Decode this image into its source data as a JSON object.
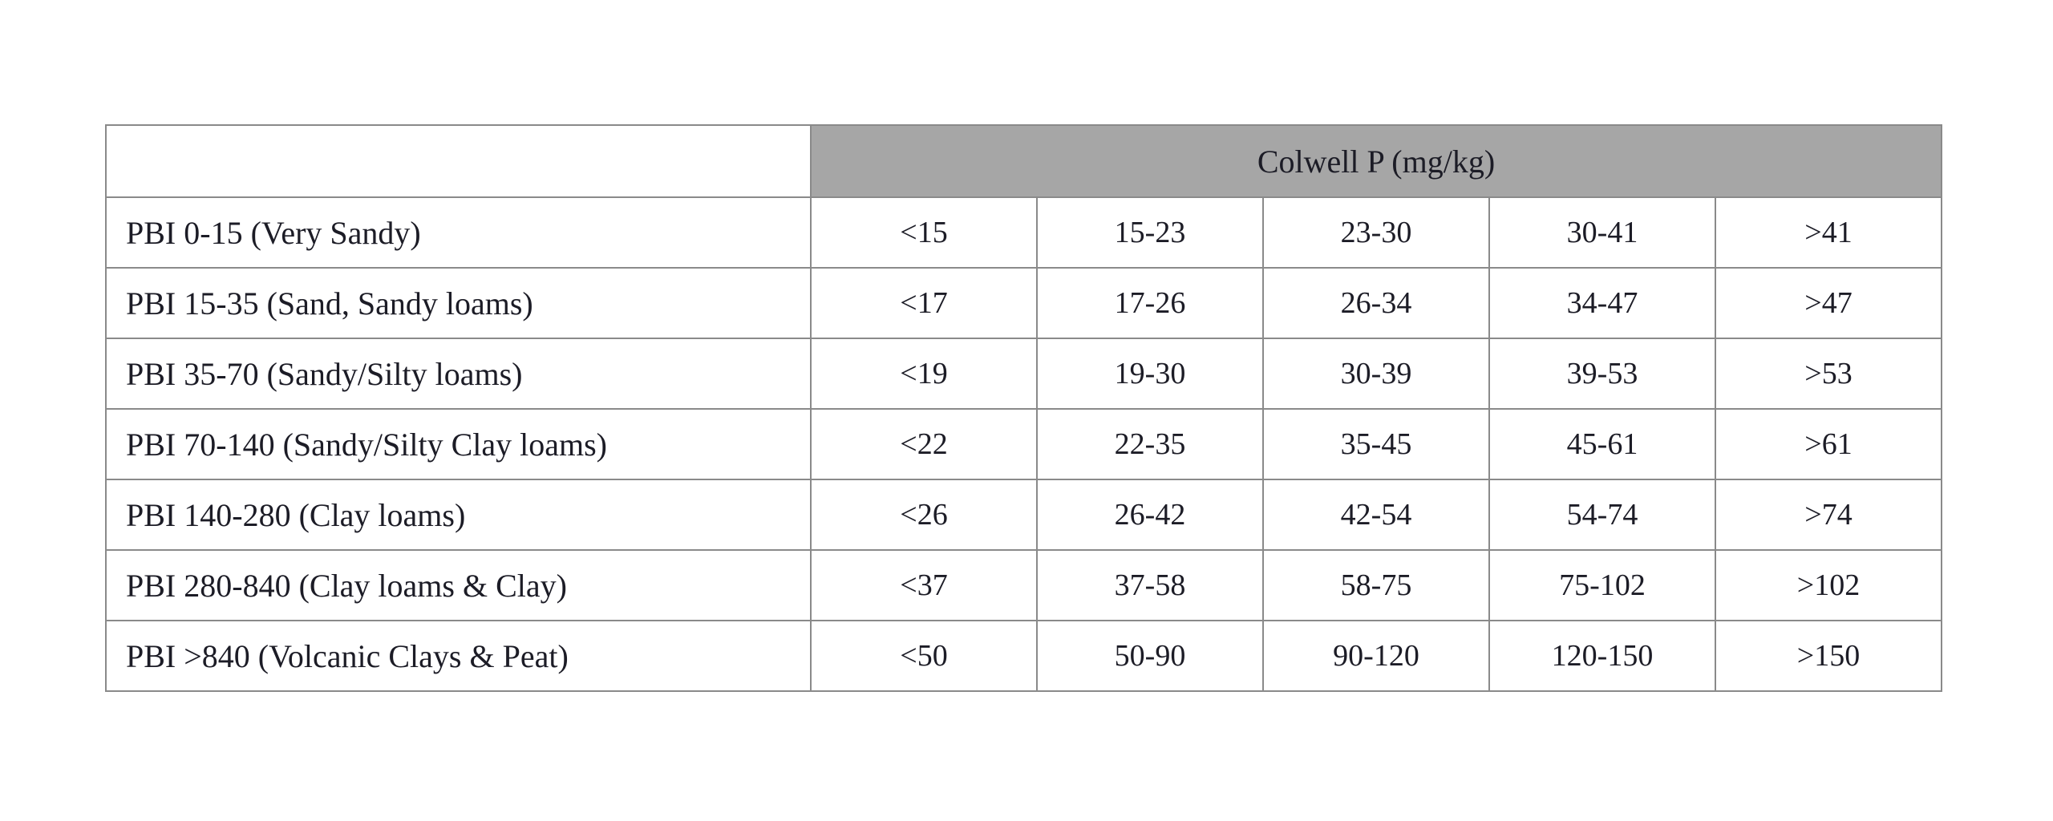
{
  "table": {
    "header": {
      "colwell_label": "Colwell P (mg/kg)"
    },
    "rows": [
      {
        "label": "PBI 0-15 (Very Sandy)",
        "values": [
          "<15",
          "15-23",
          "23-30",
          "30-41",
          ">41"
        ]
      },
      {
        "label": "PBI 15-35 (Sand, Sandy loams)",
        "values": [
          "<17",
          "17-26",
          "26-34",
          "34-47",
          ">47"
        ]
      },
      {
        "label": "PBI 35-70 (Sandy/Silty loams)",
        "values": [
          "<19",
          "19-30",
          "30-39",
          "39-53",
          ">53"
        ]
      },
      {
        "label": "PBI 70-140 (Sandy/Silty Clay loams)",
        "values": [
          "<22",
          "22-35",
          "35-45",
          "45-61",
          ">61"
        ]
      },
      {
        "label": "PBI 140-280 (Clay loams)",
        "values": [
          "<26",
          "26-42",
          "42-54",
          "54-74",
          ">74"
        ]
      },
      {
        "label": "PBI 280-840 (Clay loams & Clay)",
        "values": [
          "<37",
          "37-58",
          "58-75",
          "75-102",
          ">102"
        ]
      },
      {
        "label": "PBI >840 (Volcanic Clays & Peat)",
        "values": [
          "<50",
          "50-90",
          "90-120",
          "120-150",
          ">150"
        ]
      }
    ]
  },
  "colors": {
    "header_background": "#a6a6a6",
    "border": "#8a8a8a",
    "text": "#1c1c26",
    "page_background": "#ffffff"
  }
}
